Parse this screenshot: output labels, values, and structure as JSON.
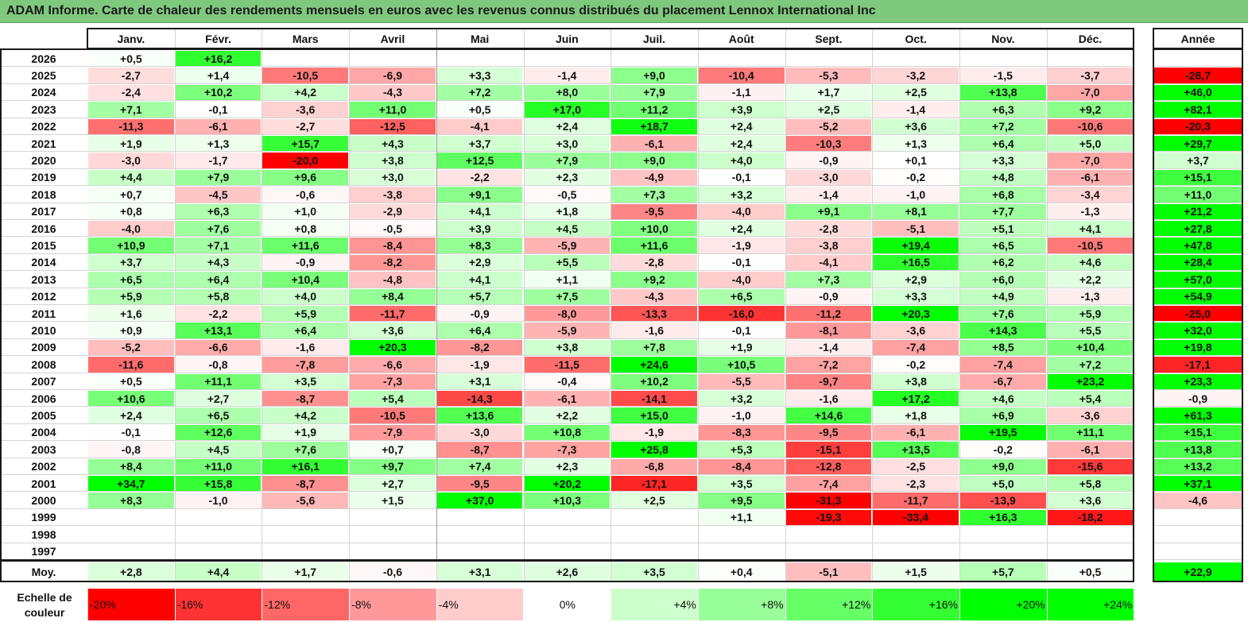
{
  "title": "ADAM Informe. Carte de chaleur des rendements mensuels en euros avec les revenus connus distribués du placement Lennox International Inc",
  "colors": {
    "title_bg": "#7fc97f",
    "negative_max": "#ff0000",
    "positive_max": "#00ff00",
    "neutral": "#ffffff"
  },
  "chart_data": {
    "type": "heatmap",
    "title": "ADAM Informe. Carte de chaleur des rendements mensuels en euros avec les revenus connus distribués du placement Lennox International Inc",
    "columns": [
      "Janv.",
      "Févr.",
      "Mars",
      "Avril",
      "Mai",
      "Juin",
      "Juil.",
      "Août",
      "Sept.",
      "Oct.",
      "Nov.",
      "Déc."
    ],
    "year_column": "Année",
    "rows": [
      {
        "label": "2026",
        "values": [
          "+0,5",
          "+16,2",
          "",
          "",
          "",
          "",
          "",
          "",
          "",
          "",
          "",
          ""
        ],
        "year": ""
      },
      {
        "label": "2025",
        "values": [
          "-2,7",
          "+1,4",
          "-10,5",
          "-6,9",
          "+3,3",
          "-1,4",
          "+9,0",
          "-10,4",
          "-5,3",
          "-3,2",
          "-1,5",
          "-3,7"
        ],
        "year": "-28,7"
      },
      {
        "label": "2024",
        "values": [
          "-2,4",
          "+10,2",
          "+4,2",
          "-4,3",
          "+7,2",
          "+8,0",
          "+7,9",
          "-1,1",
          "+1,7",
          "+2,5",
          "+13,8",
          "-7,0"
        ],
        "year": "+46,0"
      },
      {
        "label": "2023",
        "values": [
          "+7,1",
          "-0,1",
          "-3,6",
          "+11,0",
          "+0,5",
          "+17,0",
          "+11,2",
          "+3,9",
          "+2,5",
          "-1,4",
          "+6,3",
          "+9,2"
        ],
        "year": "+82,1"
      },
      {
        "label": "2022",
        "values": [
          "-11,3",
          "-6,1",
          "-2,7",
          "-12,5",
          "-4,1",
          "+2,4",
          "+18,7",
          "+2,4",
          "-5,2",
          "+3,6",
          "+7,2",
          "-10,6"
        ],
        "year": "-20,3"
      },
      {
        "label": "2021",
        "values": [
          "+1,9",
          "+1,3",
          "+15,7",
          "+4,3",
          "+3,7",
          "+3,0",
          "-6,1",
          "+2,4",
          "-10,3",
          "+1,3",
          "+6,4",
          "+5,0"
        ],
        "year": "+29,7"
      },
      {
        "label": "2020",
        "values": [
          "-3,0",
          "-1,7",
          "-20,0",
          "+3,8",
          "+12,5",
          "+7,9",
          "+9,0",
          "+4,0",
          "-0,9",
          "+0,1",
          "+3,3",
          "-7,0"
        ],
        "year": "+3,7"
      },
      {
        "label": "2019",
        "values": [
          "+4,4",
          "+7,9",
          "+9,6",
          "+3,0",
          "-2,2",
          "+2,3",
          "-4,9",
          "-0,1",
          "-3,0",
          "-0,2",
          "+4,8",
          "-6,1"
        ],
        "year": "+15,1"
      },
      {
        "label": "2018",
        "values": [
          "+0,7",
          "-4,5",
          "-0,6",
          "-3,8",
          "+9,1",
          "-0,5",
          "+7,3",
          "+3,2",
          "-1,4",
          "-1,0",
          "+6,8",
          "-3,4"
        ],
        "year": "+11,0"
      },
      {
        "label": "2017",
        "values": [
          "+0,8",
          "+6,3",
          "+1,0",
          "-2,9",
          "+4,1",
          "+1,8",
          "-9,5",
          "-4,0",
          "+9,1",
          "+8,1",
          "+7,7",
          "-1,3"
        ],
        "year": "+21,2"
      },
      {
        "label": "2016",
        "values": [
          "-4,0",
          "+7,6",
          "+0,8",
          "-0,5",
          "+3,9",
          "+4,5",
          "+10,0",
          "+2,4",
          "-2,8",
          "-5,1",
          "+5,1",
          "+4,1"
        ],
        "year": "+27,8"
      },
      {
        "label": "2015",
        "values": [
          "+10,9",
          "+7,1",
          "+11,6",
          "-8,4",
          "+8,3",
          "-5,9",
          "+11,6",
          "-1,9",
          "-3,8",
          "+19,4",
          "+6,5",
          "-10,5"
        ],
        "year": "+47,8"
      },
      {
        "label": "2014",
        "values": [
          "+3,7",
          "+4,3",
          "-0,9",
          "-8,2",
          "+2,9",
          "+5,5",
          "-2,8",
          "-0,1",
          "-4,1",
          "+16,5",
          "+6,2",
          "+4,6"
        ],
        "year": "+28,4"
      },
      {
        "label": "2013",
        "values": [
          "+6,5",
          "+6,4",
          "+10,4",
          "-4,8",
          "+4,1",
          "+1,1",
          "+9,2",
          "-4,0",
          "+7,3",
          "+2,9",
          "+6,0",
          "+2,2"
        ],
        "year": "+57,0"
      },
      {
        "label": "2012",
        "values": [
          "+5,9",
          "+5,8",
          "+4,0",
          "+8,4",
          "+5,7",
          "+7,5",
          "-4,3",
          "+6,5",
          "-0,9",
          "+3,3",
          "+4,9",
          "-1,3"
        ],
        "year": "+54,9"
      },
      {
        "label": "2011",
        "values": [
          "+1,6",
          "-2,2",
          "+5,9",
          "-11,7",
          "-0,9",
          "-8,0",
          "-13,3",
          "-16,0",
          "-11,2",
          "+20,3",
          "+7,6",
          "+5,9"
        ],
        "year": "-25,0"
      },
      {
        "label": "2010",
        "values": [
          "+0,9",
          "+13,1",
          "+6,4",
          "+3,6",
          "+6,4",
          "-5,9",
          "-1,6",
          "-0,1",
          "-8,1",
          "-3,6",
          "+14,3",
          "+5,5"
        ],
        "year": "+32,0"
      },
      {
        "label": "2009",
        "values": [
          "-5,2",
          "-6,6",
          "-1,6",
          "+20,3",
          "-8,2",
          "+3,8",
          "+7,8",
          "+1,9",
          "-1,4",
          "-7,4",
          "+8,5",
          "+10,4"
        ],
        "year": "+19,8"
      },
      {
        "label": "2008",
        "values": [
          "-11,6",
          "-0,8",
          "-7,8",
          "-6,6",
          "-1,9",
          "-11,5",
          "+24,6",
          "+10,5",
          "-7,2",
          "-0,2",
          "-7,4",
          "+7,2"
        ],
        "year": "-17,1"
      },
      {
        "label": "2007",
        "values": [
          "+0,5",
          "+11,1",
          "+3,5",
          "-7,3",
          "+3,1",
          "-0,4",
          "+10,2",
          "-5,5",
          "-9,7",
          "+3,8",
          "-6,7",
          "+23,2"
        ],
        "year": "+23,3"
      },
      {
        "label": "2006",
        "values": [
          "+10,6",
          "+2,7",
          "-8,7",
          "+5,4",
          "-14,3",
          "-6,1",
          "-14,1",
          "+3,2",
          "-1,6",
          "+17,2",
          "+4,6",
          "+5,4"
        ],
        "year": "-0,9"
      },
      {
        "label": "2005",
        "values": [
          "+2,4",
          "+6,5",
          "+4,2",
          "-10,5",
          "+13,6",
          "+2,2",
          "+15,0",
          "-1,0",
          "+14,6",
          "+1,8",
          "+6,9",
          "-3,6"
        ],
        "year": "+61,3"
      },
      {
        "label": "2004",
        "values": [
          "-0,1",
          "+12,6",
          "+1,9",
          "-7,9",
          "-3,0",
          "+10,8",
          "-1,9",
          "-8,3",
          "-9,5",
          "-6,1",
          "+19,5",
          "+11,1"
        ],
        "year": "+15,1"
      },
      {
        "label": "2003",
        "values": [
          "-0,8",
          "+4,5",
          "+7,6",
          "+0,7",
          "-8,7",
          "-7,3",
          "+25,8",
          "+5,3",
          "-15,1",
          "+13,5",
          "-0,2",
          "-6,1"
        ],
        "year": "+13,8"
      },
      {
        "label": "2002",
        "values": [
          "+8,4",
          "+11,0",
          "+16,1",
          "+9,7",
          "+7,4",
          "+2,3",
          "-6,8",
          "-8,4",
          "-12,8",
          "-2,5",
          "+9,0",
          "-15,6"
        ],
        "year": "+13,2"
      },
      {
        "label": "2001",
        "values": [
          "+34,7",
          "+15,8",
          "-8,7",
          "+2,7",
          "-9,5",
          "+20,2",
          "-17,1",
          "+3,5",
          "-7,4",
          "-2,3",
          "+5,0",
          "+5,8"
        ],
        "year": "+37,1"
      },
      {
        "label": "2000",
        "values": [
          "+8,3",
          "-1,0",
          "-5,6",
          "+1,5",
          "+37,0",
          "+10,3",
          "+2,5",
          "+9,5",
          "-31,3",
          "-11,7",
          "-13,9",
          "+3,6"
        ],
        "year": "-4,6"
      },
      {
        "label": "1999",
        "values": [
          "",
          "",
          "",
          "",
          "",
          "",
          "",
          "+1,1",
          "-19,3",
          "-33,4",
          "+16,3",
          "-18,2"
        ],
        "year": ""
      },
      {
        "label": "1998",
        "values": [
          "",
          "",
          "",
          "",
          "",
          "",
          "",
          "",
          "",
          "",
          "",
          ""
        ],
        "year": ""
      },
      {
        "label": "1997",
        "values": [
          "",
          "",
          "",
          "",
          "",
          "",
          "",
          "",
          "",
          "",
          "",
          ""
        ],
        "year": ""
      }
    ],
    "average": {
      "label": "Moy.",
      "values": [
        "+2,8",
        "+4,4",
        "+1,7",
        "-0,6",
        "+3,1",
        "+2,6",
        "+3,5",
        "+0,4",
        "-5,1",
        "+1,5",
        "+5,7",
        "+0,5"
      ],
      "year": "+22,9"
    },
    "scale": {
      "label": "Echelle de couleur",
      "steps": [
        "-20%",
        "-16%",
        "-12%",
        "-8%",
        "-4%",
        "0%",
        "+4%",
        "+8%",
        "+12%",
        "+16%",
        "+20%",
        "+24%"
      ]
    }
  }
}
